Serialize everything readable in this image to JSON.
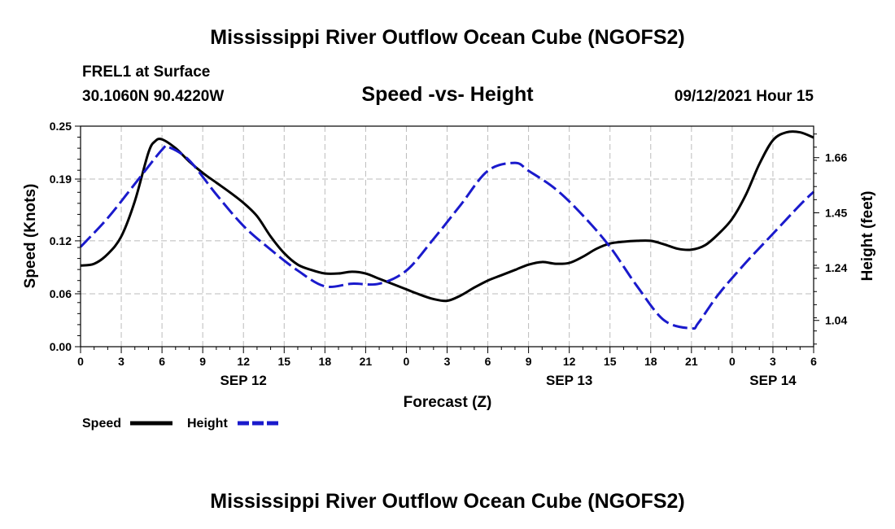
{
  "header": {
    "title_top": "Mississippi River Outflow Ocean Cube (NGOFS2)",
    "station": "FREL1 at Surface",
    "coords": "30.1060N  90.4220W",
    "subtitle": "Speed -vs- Height",
    "timestamp": "09/12/2021 Hour 15",
    "title_bottom": "Mississippi River Outflow Ocean Cube (NGOFS2)"
  },
  "legend": {
    "speed_label": "Speed",
    "height_label": "Height"
  },
  "colors": {
    "speed": "#000000",
    "height": "#1a1acc",
    "grid": "#bbbbbb"
  },
  "chart_data": {
    "type": "line",
    "title": "Speed -vs- Height",
    "xlabel": "Forecast (Z)",
    "ylabel": "Speed (Knots)",
    "y2label": "Height (feet)",
    "xlim": [
      0,
      54
    ],
    "ylim": [
      0,
      0.25
    ],
    "y2lim": [
      0.94,
      1.78
    ],
    "x_ticks": [
      0,
      3,
      6,
      9,
      12,
      15,
      18,
      21,
      24,
      27,
      30,
      33,
      36,
      39,
      42,
      45,
      48,
      51,
      54
    ],
    "x_tick_labels": [
      "0",
      "3",
      "6",
      "9",
      "12",
      "15",
      "18",
      "21",
      "0",
      "3",
      "6",
      "9",
      "12",
      "15",
      "18",
      "21",
      "0",
      "3",
      "6"
    ],
    "y_ticks": [
      0,
      0.06,
      0.12,
      0.19,
      0.25
    ],
    "y_tick_labels": [
      "0.00",
      "0.06",
      "0.12",
      "0.19",
      "0.25"
    ],
    "y2_ticks": [
      1.04,
      1.24,
      1.45,
      1.66
    ],
    "y2_tick_labels": [
      "1.04",
      "1.24",
      "1.45",
      "1.66"
    ],
    "date_labels": [
      {
        "x": 12,
        "label": "SEP 12"
      },
      {
        "x": 36,
        "label": "SEP 13"
      },
      {
        "x": 51,
        "label": "SEP 14"
      }
    ],
    "legend_position": "bottom-left",
    "series": [
      {
        "name": "Speed",
        "axis": "left",
        "style": "solid",
        "x": [
          0,
          1,
          2,
          3,
          4,
          5,
          5.5,
          6,
          7,
          8,
          9,
          10,
          11,
          12,
          13,
          14,
          15,
          16,
          17,
          18,
          19,
          20,
          21,
          22,
          23,
          24,
          25,
          26,
          27,
          28,
          29,
          30,
          31,
          32,
          33,
          34,
          35,
          36,
          37,
          38,
          39,
          40,
          41,
          42,
          43,
          44,
          45,
          46,
          47,
          48,
          49,
          50,
          51,
          52,
          53,
          54
        ],
        "values": [
          0.092,
          0.094,
          0.105,
          0.125,
          0.165,
          0.22,
          0.233,
          0.235,
          0.225,
          0.21,
          0.197,
          0.186,
          0.175,
          0.163,
          0.148,
          0.125,
          0.106,
          0.093,
          0.087,
          0.083,
          0.083,
          0.085,
          0.083,
          0.077,
          0.071,
          0.065,
          0.059,
          0.054,
          0.052,
          0.058,
          0.067,
          0.075,
          0.081,
          0.087,
          0.093,
          0.096,
          0.094,
          0.095,
          0.102,
          0.111,
          0.117,
          0.119,
          0.12,
          0.12,
          0.116,
          0.111,
          0.11,
          0.115,
          0.128,
          0.145,
          0.172,
          0.207,
          0.234,
          0.243,
          0.243,
          0.237
        ]
      },
      {
        "name": "Height",
        "axis": "right",
        "style": "dashed",
        "x": [
          0,
          2,
          4,
          6,
          6.5,
          8,
          10,
          12,
          14,
          16,
          18,
          20,
          22,
          24,
          26,
          28,
          30,
          32,
          33,
          35,
          37,
          39,
          41,
          43,
          45,
          45.5,
          47,
          49,
          51,
          53,
          54
        ],
        "values": [
          1.32,
          1.43,
          1.56,
          1.69,
          1.7,
          1.65,
          1.52,
          1.4,
          1.31,
          1.23,
          1.17,
          1.18,
          1.18,
          1.23,
          1.35,
          1.48,
          1.61,
          1.64,
          1.61,
          1.54,
          1.44,
          1.32,
          1.17,
          1.04,
          1.01,
          1.03,
          1.14,
          1.26,
          1.37,
          1.48,
          1.53
        ]
      }
    ]
  }
}
